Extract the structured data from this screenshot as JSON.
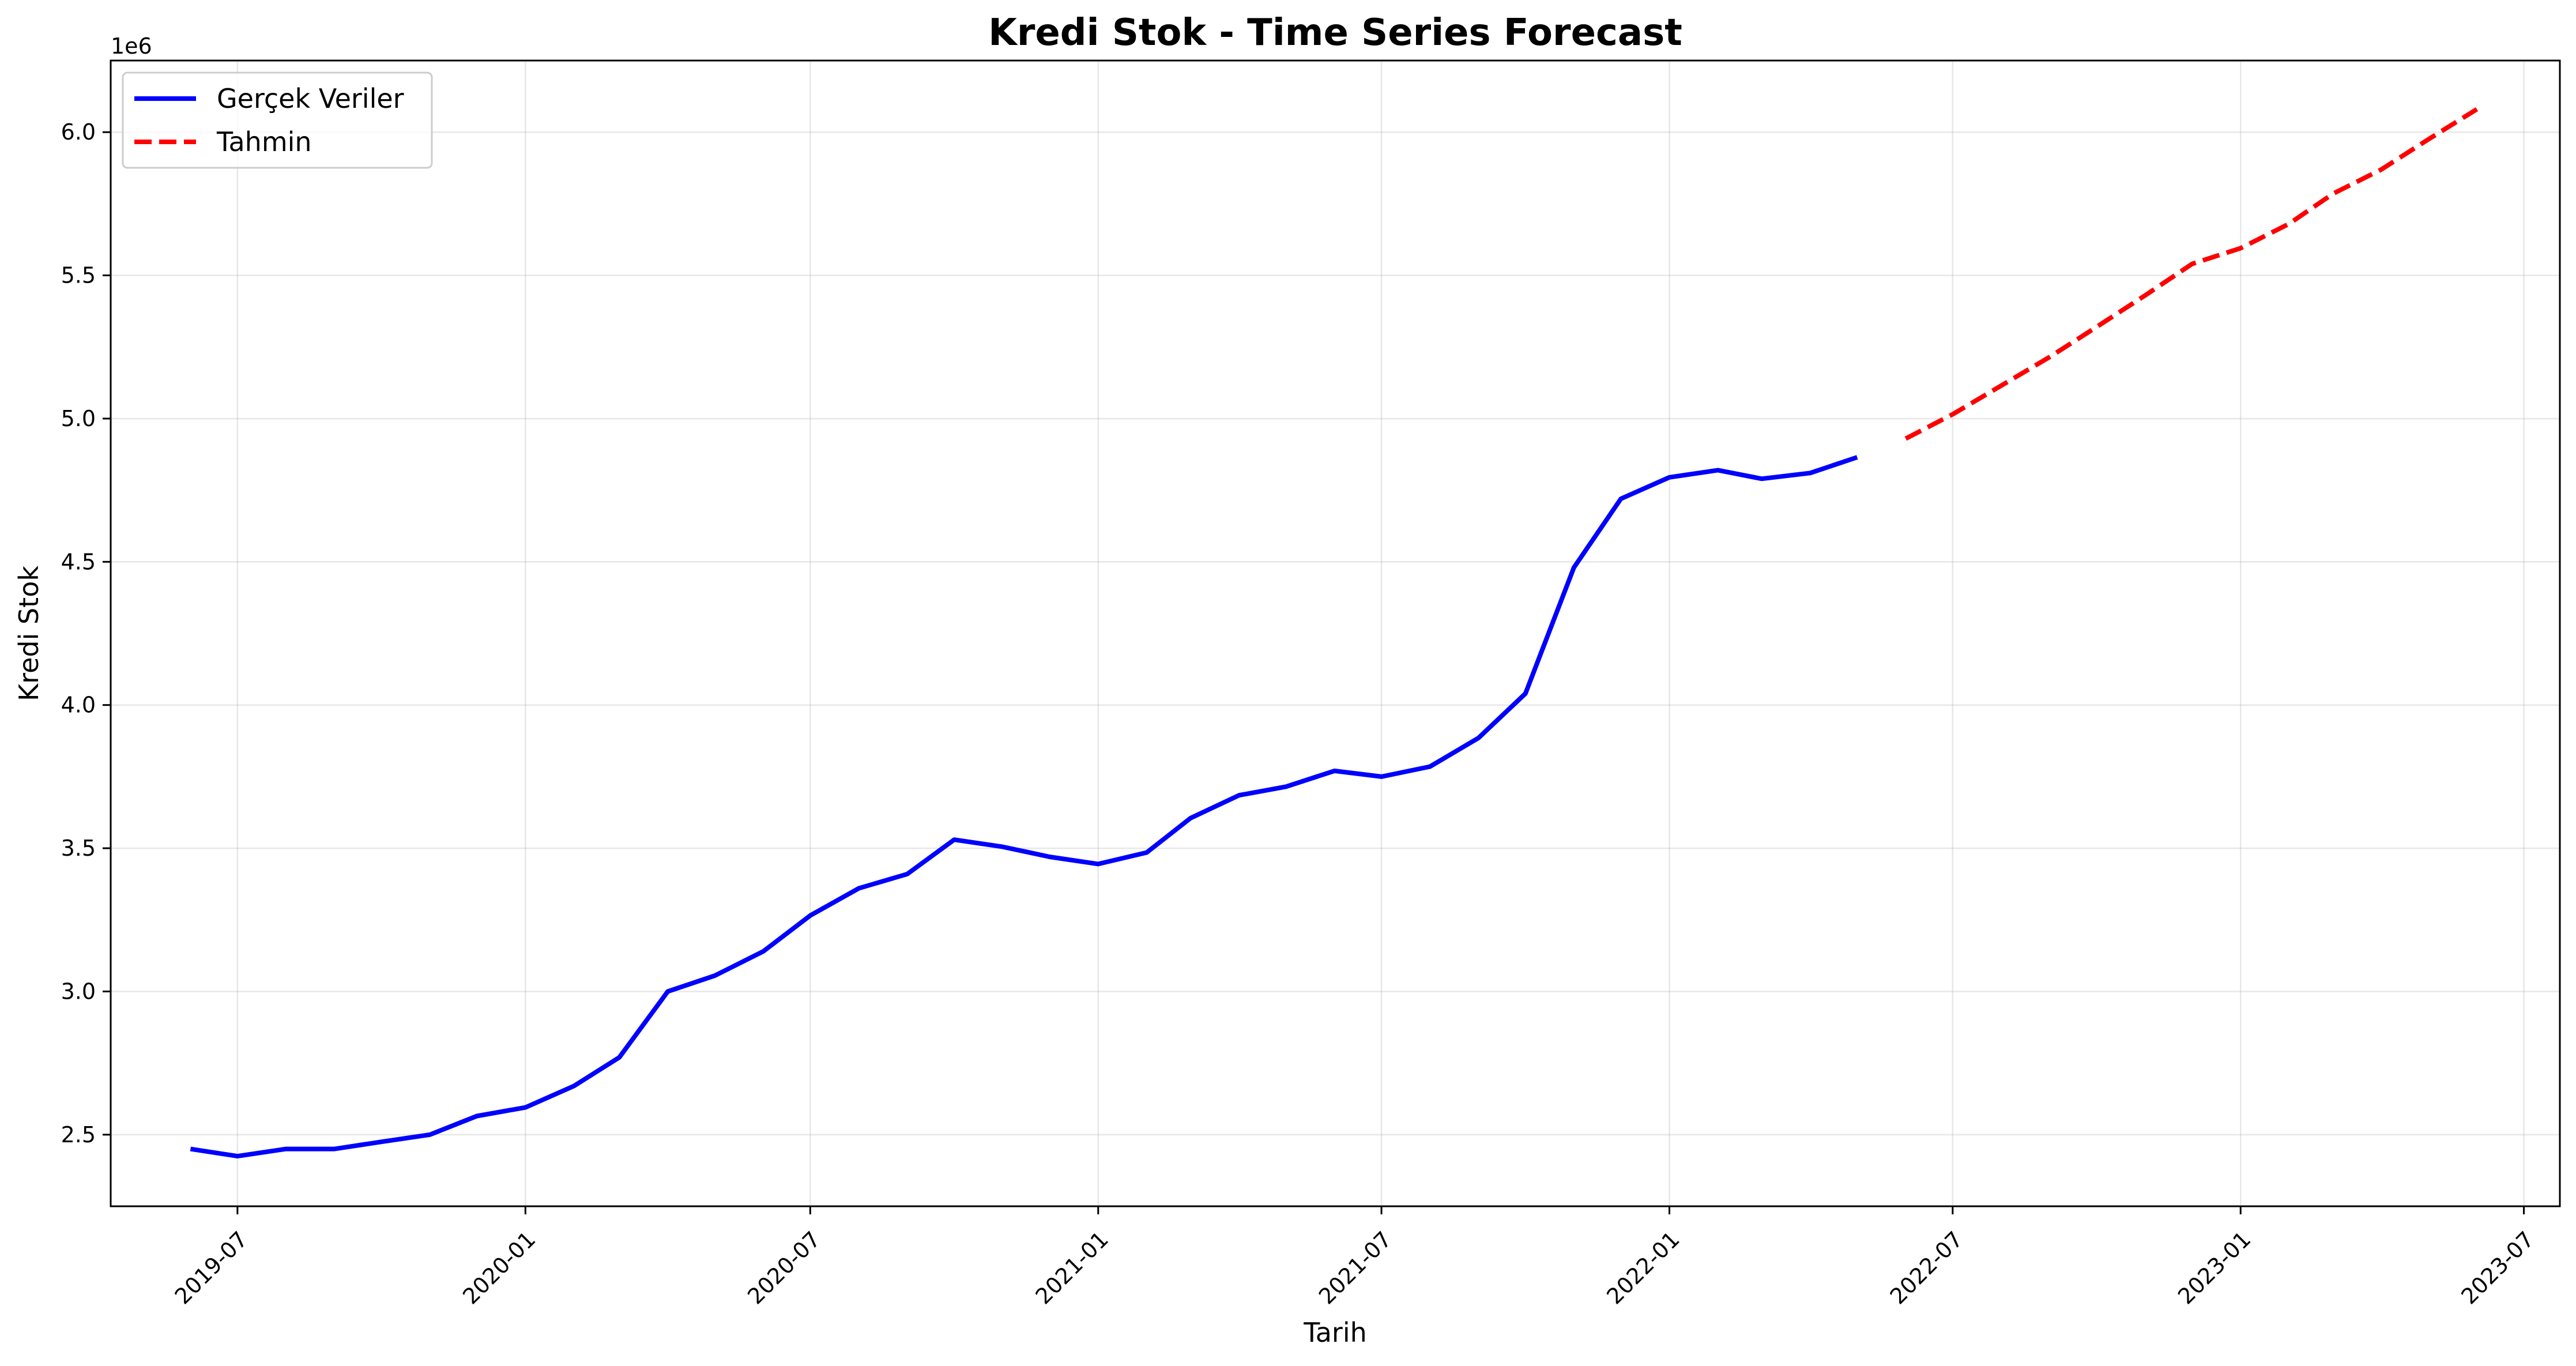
{
  "chart_data": {
    "type": "line",
    "title": "Kredi Stok - Time Series Forecast",
    "xlabel": "Tarih",
    "ylabel": "Kredi Stok",
    "y_offset_label": "1e6",
    "xlim": [
      "2019-04-11",
      "2023-07-24"
    ],
    "ylim": [
      2.25,
      6.25
    ],
    "x_ticks": [
      "2019-07",
      "2020-01",
      "2020-07",
      "2021-01",
      "2021-07",
      "2022-01",
      "2022-07",
      "2023-01",
      "2023-07"
    ],
    "y_ticks": [
      "2.5",
      "3.0",
      "3.5",
      "4.0",
      "4.5",
      "5.0",
      "5.5",
      "6.0"
    ],
    "grid": true,
    "legend_position": "top-left",
    "series": [
      {
        "name": "Gerçek Veriler",
        "color": "#0000ff",
        "style": "solid",
        "x": [
          "2019-06-01",
          "2019-07-01",
          "2019-08-01",
          "2019-09-01",
          "2019-10-01",
          "2019-11-01",
          "2019-12-01",
          "2020-01-01",
          "2020-02-01",
          "2020-03-01",
          "2020-04-01",
          "2020-05-01",
          "2020-06-01",
          "2020-07-01",
          "2020-08-01",
          "2020-09-01",
          "2020-10-01",
          "2020-11-01",
          "2020-12-01",
          "2021-01-01",
          "2021-02-01",
          "2021-03-01",
          "2021-04-01",
          "2021-05-01",
          "2021-06-01",
          "2021-07-01",
          "2021-08-01",
          "2021-09-01",
          "2021-10-01",
          "2021-11-01",
          "2021-12-01",
          "2022-01-01",
          "2022-02-01",
          "2022-03-01",
          "2022-04-01",
          "2022-05-01"
        ],
        "y": [
          2.45,
          2.425,
          2.45,
          2.45,
          2.475,
          2.5,
          2.565,
          2.595,
          2.67,
          2.77,
          3.0,
          3.055,
          3.14,
          3.265,
          3.36,
          3.41,
          3.53,
          3.505,
          3.47,
          3.445,
          3.485,
          3.605,
          3.685,
          3.715,
          3.77,
          3.75,
          3.785,
          3.885,
          4.04,
          4.48,
          4.72,
          4.795,
          4.82,
          4.79,
          4.81,
          4.865
        ]
      },
      {
        "name": "Tahmin",
        "color": "#ff0000",
        "style": "dashed",
        "x": [
          "2022-06-01",
          "2022-07-01",
          "2022-08-01",
          "2022-09-01",
          "2022-10-01",
          "2022-11-01",
          "2022-12-01",
          "2023-01-01",
          "2023-02-01",
          "2023-03-01",
          "2023-04-01",
          "2023-05-01",
          "2023-06-01"
        ],
        "y": [
          4.93,
          5.015,
          5.115,
          5.215,
          5.32,
          5.43,
          5.54,
          5.595,
          5.68,
          5.785,
          5.87,
          5.975,
          6.08
        ]
      }
    ]
  }
}
